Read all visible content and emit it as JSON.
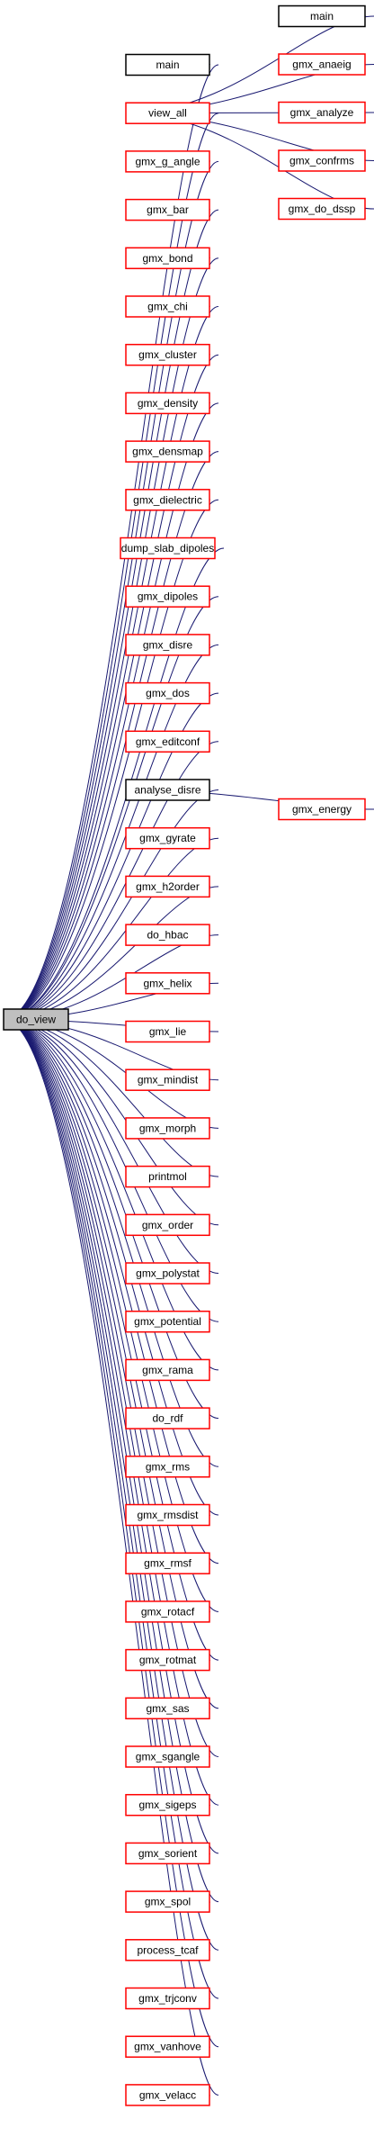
{
  "colors": {
    "edge": "#191970",
    "caller_border": "#ff0000",
    "documented_border": "#000000",
    "root_fill": "#bfbfbf"
  },
  "root": {
    "id": "do_view",
    "label": "do_view"
  },
  "callers": [
    {
      "id": "main_1",
      "label": "main",
      "style": "black"
    },
    {
      "id": "view_all",
      "label": "view_all",
      "style": "red"
    },
    {
      "id": "gmx_g_angle",
      "label": "gmx_g_angle",
      "style": "red"
    },
    {
      "id": "gmx_bar",
      "label": "gmx_bar",
      "style": "red"
    },
    {
      "id": "gmx_bond",
      "label": "gmx_bond",
      "style": "red"
    },
    {
      "id": "gmx_chi",
      "label": "gmx_chi",
      "style": "red"
    },
    {
      "id": "gmx_cluster",
      "label": "gmx_cluster",
      "style": "red"
    },
    {
      "id": "gmx_density",
      "label": "gmx_density",
      "style": "red"
    },
    {
      "id": "gmx_densmap",
      "label": "gmx_densmap",
      "style": "red"
    },
    {
      "id": "gmx_dielectric",
      "label": "gmx_dielectric",
      "style": "red"
    },
    {
      "id": "dump_slab_dipoles",
      "label": "dump_slab_dipoles",
      "style": "red"
    },
    {
      "id": "gmx_dipoles",
      "label": "gmx_dipoles",
      "style": "red"
    },
    {
      "id": "gmx_disre",
      "label": "gmx_disre",
      "style": "red"
    },
    {
      "id": "gmx_dos",
      "label": "gmx_dos",
      "style": "red"
    },
    {
      "id": "gmx_editconf",
      "label": "gmx_editconf",
      "style": "red"
    },
    {
      "id": "analyse_disre",
      "label": "analyse_disre",
      "style": "black"
    },
    {
      "id": "gmx_gyrate",
      "label": "gmx_gyrate",
      "style": "red"
    },
    {
      "id": "gmx_h2order",
      "label": "gmx_h2order",
      "style": "red"
    },
    {
      "id": "do_hbac",
      "label": "do_hbac",
      "style": "red"
    },
    {
      "id": "gmx_helix",
      "label": "gmx_helix",
      "style": "red"
    },
    {
      "id": "gmx_lie",
      "label": "gmx_lie",
      "style": "red"
    },
    {
      "id": "gmx_mindist",
      "label": "gmx_mindist",
      "style": "red"
    },
    {
      "id": "gmx_morph",
      "label": "gmx_morph",
      "style": "red"
    },
    {
      "id": "printmol",
      "label": "printmol",
      "style": "red"
    },
    {
      "id": "gmx_order",
      "label": "gmx_order",
      "style": "red"
    },
    {
      "id": "gmx_polystat",
      "label": "gmx_polystat",
      "style": "red"
    },
    {
      "id": "gmx_potential",
      "label": "gmx_potential",
      "style": "red"
    },
    {
      "id": "gmx_rama",
      "label": "gmx_rama",
      "style": "red"
    },
    {
      "id": "do_rdf",
      "label": "do_rdf",
      "style": "red"
    },
    {
      "id": "gmx_rms",
      "label": "gmx_rms",
      "style": "red"
    },
    {
      "id": "gmx_rmsdist",
      "label": "gmx_rmsdist",
      "style": "red"
    },
    {
      "id": "gmx_rmsf",
      "label": "gmx_rmsf",
      "style": "red"
    },
    {
      "id": "gmx_rotacf",
      "label": "gmx_rotacf",
      "style": "red"
    },
    {
      "id": "gmx_rotmat",
      "label": "gmx_rotmat",
      "style": "red"
    },
    {
      "id": "gmx_sas",
      "label": "gmx_sas",
      "style": "red"
    },
    {
      "id": "gmx_sgangle",
      "label": "gmx_sgangle",
      "style": "red"
    },
    {
      "id": "gmx_sigeps",
      "label": "gmx_sigeps",
      "style": "red"
    },
    {
      "id": "gmx_sorient",
      "label": "gmx_sorient",
      "style": "red"
    },
    {
      "id": "gmx_spol",
      "label": "gmx_spol",
      "style": "red"
    },
    {
      "id": "process_tcaf",
      "label": "process_tcaf",
      "style": "red"
    },
    {
      "id": "gmx_trjconv",
      "label": "gmx_trjconv",
      "style": "red"
    },
    {
      "id": "gmx_vanhove",
      "label": "gmx_vanhove",
      "style": "red"
    },
    {
      "id": "gmx_velacc",
      "label": "gmx_velacc",
      "style": "red"
    }
  ],
  "view_all_callers": [
    {
      "id": "main_2",
      "label": "main",
      "style": "black"
    },
    {
      "id": "gmx_anaeig",
      "label": "gmx_anaeig",
      "style": "red"
    },
    {
      "id": "gmx_analyze",
      "label": "gmx_analyze",
      "style": "red"
    },
    {
      "id": "gmx_confrms",
      "label": "gmx_confrms",
      "style": "red"
    },
    {
      "id": "gmx_do_dssp",
      "label": "gmx_do_dssp",
      "style": "red"
    }
  ],
  "analyse_disre_callers": [
    {
      "id": "gmx_energy",
      "label": "gmx_energy",
      "style": "red"
    }
  ]
}
